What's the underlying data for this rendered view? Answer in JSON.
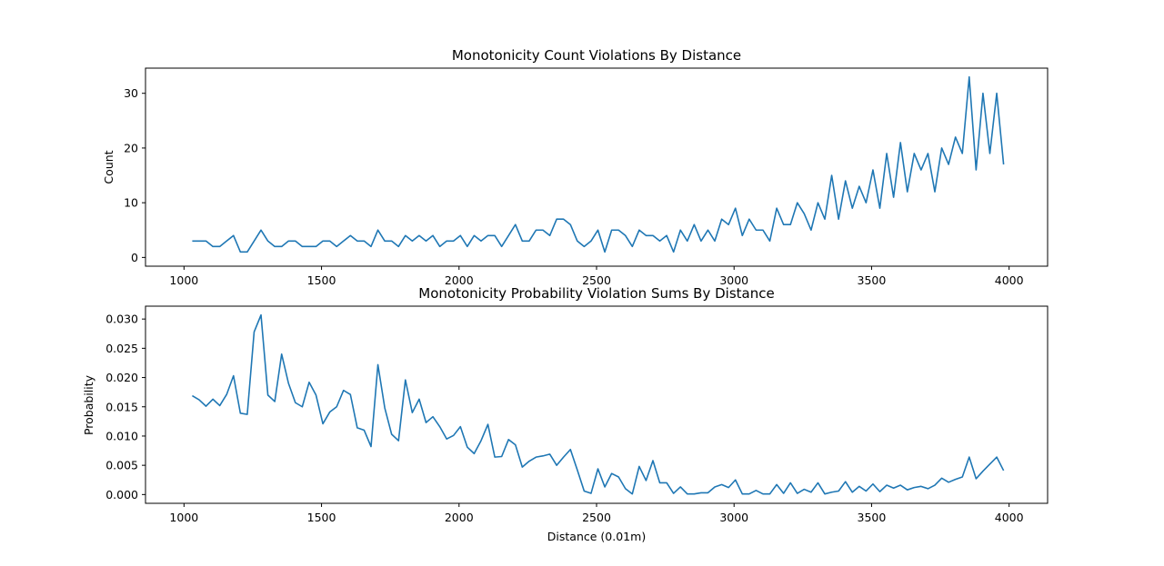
{
  "chart_data": [
    {
      "type": "line",
      "title": "Monotonicity Count Violations By Distance",
      "xlabel": "",
      "ylabel": "Count",
      "xlim": [
        860,
        4140
      ],
      "ylim": [
        -1.6,
        34.6
      ],
      "xticks": [
        1000,
        1500,
        2000,
        2500,
        3000,
        3500,
        4000
      ],
      "yticks": [
        0,
        10,
        20,
        30
      ],
      "grid": false,
      "series": [
        {
          "color": "#1f77b4",
          "x": [
            1030,
            1055,
            1080,
            1105,
            1130,
            1155,
            1180,
            1205,
            1230,
            1255,
            1280,
            1305,
            1330,
            1355,
            1380,
            1405,
            1430,
            1455,
            1480,
            1505,
            1530,
            1555,
            1580,
            1605,
            1630,
            1655,
            1680,
            1705,
            1730,
            1755,
            1780,
            1805,
            1830,
            1855,
            1880,
            1905,
            1930,
            1955,
            1980,
            2005,
            2030,
            2055,
            2080,
            2105,
            2130,
            2155,
            2180,
            2205,
            2230,
            2255,
            2280,
            2305,
            2330,
            2355,
            2380,
            2405,
            2430,
            2455,
            2480,
            2505,
            2530,
            2555,
            2580,
            2605,
            2630,
            2655,
            2680,
            2705,
            2730,
            2755,
            2780,
            2805,
            2830,
            2855,
            2880,
            2905,
            2930,
            2955,
            2980,
            3005,
            3030,
            3055,
            3080,
            3105,
            3130,
            3155,
            3180,
            3205,
            3230,
            3255,
            3280,
            3305,
            3330,
            3355,
            3380,
            3405,
            3430,
            3455,
            3480,
            3505,
            3530,
            3555,
            3580,
            3605,
            3630,
            3655,
            3680,
            3705,
            3730,
            3755,
            3780,
            3805,
            3830,
            3855,
            3880,
            3905,
            3930,
            3955,
            3980
          ],
          "values": [
            3,
            3,
            3,
            2,
            2,
            3,
            4,
            1,
            1,
            3,
            5,
            3,
            2,
            2,
            3,
            3,
            2,
            2,
            2,
            3,
            3,
            2,
            3,
            4,
            3,
            3,
            2,
            5,
            3,
            3,
            2,
            4,
            3,
            4,
            3,
            4,
            2,
            3,
            3,
            4,
            2,
            4,
            3,
            4,
            4,
            2,
            4,
            6,
            3,
            3,
            5,
            5,
            4,
            7,
            7,
            6,
            3,
            2,
            3,
            5,
            1,
            5,
            5,
            4,
            2,
            5,
            4,
            4,
            3,
            4,
            1,
            5,
            3,
            6,
            3,
            5,
            3,
            7,
            6,
            9,
            4,
            7,
            5,
            5,
            3,
            9,
            6,
            6,
            10,
            8,
            5,
            10,
            7,
            15,
            7,
            14,
            9,
            13,
            10,
            16,
            9,
            19,
            11,
            21,
            12,
            19,
            16,
            19,
            12,
            20,
            17,
            22,
            19,
            33,
            16,
            30,
            19,
            30,
            17
          ]
        }
      ]
    },
    {
      "type": "line",
      "title": "Monotonicity Probability Violation Sums By Distance",
      "xlabel": "Distance (0.01m)",
      "ylabel": "Probability",
      "xlim": [
        860,
        4140
      ],
      "ylim": [
        -0.0015,
        0.0322
      ],
      "xticks": [
        1000,
        1500,
        2000,
        2500,
        3000,
        3500,
        4000
      ],
      "yticks": [
        "0.000",
        "0.005",
        "0.010",
        "0.015",
        "0.020",
        "0.025",
        "0.030"
      ],
      "grid": false,
      "series": [
        {
          "color": "#1f77b4",
          "x": [
            1030,
            1055,
            1080,
            1105,
            1130,
            1155,
            1180,
            1205,
            1230,
            1255,
            1280,
            1305,
            1330,
            1355,
            1380,
            1405,
            1430,
            1455,
            1480,
            1505,
            1530,
            1555,
            1580,
            1605,
            1630,
            1655,
            1680,
            1705,
            1730,
            1755,
            1780,
            1805,
            1830,
            1855,
            1880,
            1905,
            1930,
            1955,
            1980,
            2005,
            2030,
            2055,
            2080,
            2105,
            2130,
            2155,
            2180,
            2205,
            2230,
            2255,
            2280,
            2305,
            2330,
            2355,
            2380,
            2405,
            2430,
            2455,
            2480,
            2505,
            2530,
            2555,
            2580,
            2605,
            2630,
            2655,
            2680,
            2705,
            2730,
            2755,
            2780,
            2805,
            2830,
            2855,
            2880,
            2905,
            2930,
            2955,
            2980,
            3005,
            3030,
            3055,
            3080,
            3105,
            3130,
            3155,
            3180,
            3205,
            3230,
            3255,
            3280,
            3305,
            3330,
            3355,
            3380,
            3405,
            3430,
            3455,
            3480,
            3505,
            3530,
            3555,
            3580,
            3605,
            3630,
            3655,
            3680,
            3705,
            3730,
            3755,
            3780,
            3805,
            3830,
            3855,
            3880,
            3905,
            3930,
            3955,
            3980
          ],
          "values": [
            0.0169,
            0.0162,
            0.0151,
            0.0163,
            0.0152,
            0.0171,
            0.0203,
            0.0139,
            0.0137,
            0.0278,
            0.0307,
            0.017,
            0.0159,
            0.024,
            0.019,
            0.0157,
            0.015,
            0.0192,
            0.017,
            0.0121,
            0.0141,
            0.015,
            0.0178,
            0.0171,
            0.0114,
            0.011,
            0.0082,
            0.0222,
            0.0148,
            0.0103,
            0.0092,
            0.0196,
            0.014,
            0.0163,
            0.0123,
            0.0133,
            0.0116,
            0.0095,
            0.0101,
            0.0116,
            0.0081,
            0.007,
            0.0092,
            0.012,
            0.0064,
            0.0065,
            0.0094,
            0.0085,
            0.0047,
            0.0057,
            0.0064,
            0.0066,
            0.0069,
            0.005,
            0.0064,
            0.0077,
            0.0042,
            0.0006,
            0.0002,
            0.0044,
            0.0013,
            0.0036,
            0.003,
            0.001,
            0.0001,
            0.0048,
            0.0024,
            0.0058,
            0.002,
            0.002,
            0.0002,
            0.0013,
            0.0001,
            0.0001,
            0.0003,
            0.0003,
            0.0013,
            0.0017,
            0.0012,
            0.0025,
            0.0001,
            0.0001,
            0.0007,
            0.0001,
            0.0001,
            0.0017,
            0.0002,
            0.002,
            0.0002,
            0.0009,
            0.0004,
            0.002,
            0.0001,
            0.0004,
            0.0006,
            0.0022,
            0.0004,
            0.0014,
            0.0006,
            0.0018,
            0.0005,
            0.0016,
            0.0011,
            0.0016,
            0.0008,
            0.0012,
            0.0014,
            0.001,
            0.0016,
            0.0028,
            0.0021,
            0.0026,
            0.003,
            0.0064,
            0.0027,
            0.004,
            0.0052,
            0.0064,
            0.0041
          ]
        }
      ]
    }
  ]
}
